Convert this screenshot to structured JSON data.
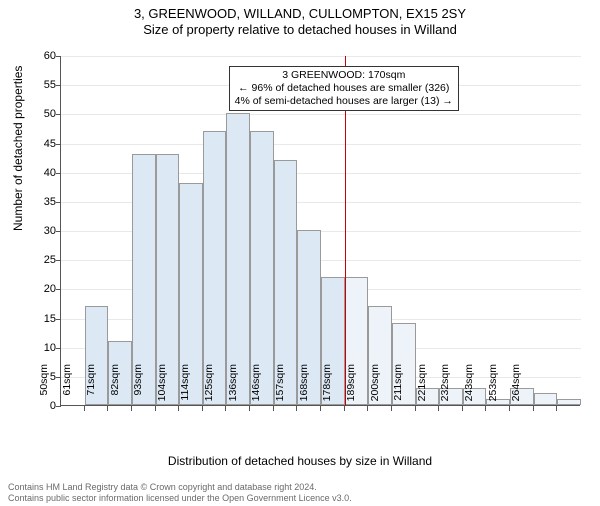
{
  "titles": {
    "main": "3, GREENWOOD, WILLAND, CULLOMPTON, EX15 2SY",
    "sub": "Size of property relative to detached houses in Willand"
  },
  "chart": {
    "type": "histogram",
    "ylabel": "Number of detached properties",
    "xlabel": "Distribution of detached houses by size in Willand",
    "ylim": [
      0,
      60
    ],
    "ytick_step": 5,
    "bar_fill": "#dde8f5",
    "bar_fill_after": "#eef3fa",
    "bar_border": "#9a9a9a",
    "grid_color": "#e9e9e9",
    "axis_color": "#555555",
    "categories": [
      "50sqm",
      "61sqm",
      "71sqm",
      "82sqm",
      "93sqm",
      "104sqm",
      "114sqm",
      "125sqm",
      "136sqm",
      "146sqm",
      "157sqm",
      "168sqm",
      "178sqm",
      "189sqm",
      "200sqm",
      "211sqm",
      "221sqm",
      "232sqm",
      "243sqm",
      "253sqm",
      "264sqm"
    ],
    "values": [
      0,
      17,
      11,
      43,
      43,
      38,
      47,
      50,
      47,
      42,
      30,
      22,
      22,
      17,
      14,
      3,
      3,
      3,
      1,
      3,
      2,
      1
    ],
    "ref_line": {
      "index": 12,
      "color": "#cc0000",
      "width": 1.5
    },
    "annotation": {
      "line1": "3 GREENWOOD: 170sqm",
      "line2": "← 96% of detached houses are smaller (326)",
      "line3": "4% of semi-detached houses are larger (13) →"
    }
  },
  "copyright": {
    "line1": "Contains HM Land Registry data © Crown copyright and database right 2024.",
    "line2": "Contains public sector information licensed under the Open Government Licence v3.0."
  }
}
